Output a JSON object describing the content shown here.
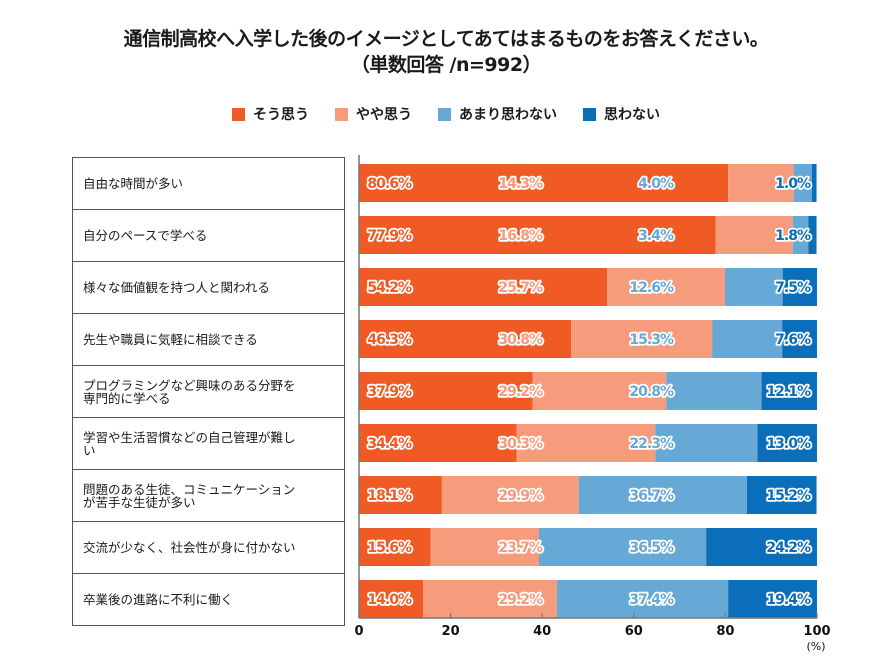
{
  "chart_data": {
    "type": "bar",
    "orientation": "horizontal",
    "stacked": true,
    "title": "通信制高校へ入学した後のイメージとしてあてはまるものをお答えください。",
    "subtitle": "（単数回答 /n=992）",
    "xlabel": "",
    "unit_label": "(%)",
    "xlim": [
      0,
      100
    ],
    "xticks": [
      "0",
      "20",
      "40",
      "60",
      "80",
      "100"
    ],
    "legend_position": "top",
    "categories": [
      "自由な時間が多い",
      "自分のペースで学べる",
      "様々な価値観を持つ人と関われる",
      "先生や職員に気軽に相談できる",
      "プログラミングなど興味のある分野を専門的に学べる",
      "学習や生活習慣などの自己管理が難しい",
      "問題のある生徒、コミュニケーションが苦手な生徒が多い",
      "交流が少なく、社会性が身に付かない",
      "卒業後の進路に不利に働く"
    ],
    "category_lines": [
      [
        "自由な時間が多い"
      ],
      [
        "自分のペースで学べる"
      ],
      [
        "様々な価値観を持つ人と関われる"
      ],
      [
        "先生や職員に気軽に相談できる"
      ],
      [
        "プログラミングなど興味のある分野を",
        "専門的に学べる"
      ],
      [
        "学習や生活習慣などの自己管理が難し",
        "い"
      ],
      [
        "問題のある生徒、コミュニケーション",
        "が苦手な生徒が多い"
      ],
      [
        "交流が少なく、社会性が身に付かない"
      ],
      [
        "卒業後の進路に不利に働く"
      ]
    ],
    "series": [
      {
        "name": "そう思う",
        "color": "#F05A24",
        "values": [
          80.6,
          77.9,
          54.2,
          46.3,
          37.9,
          34.4,
          18.1,
          15.6,
          14.0
        ]
      },
      {
        "name": "やや思う",
        "color": "#F69B7C",
        "values": [
          14.3,
          16.8,
          25.7,
          30.8,
          29.2,
          30.3,
          29.9,
          23.7,
          29.2
        ]
      },
      {
        "name": "あまり思わない",
        "color": "#66A9D7",
        "values": [
          4.0,
          3.4,
          12.6,
          15.3,
          20.8,
          22.3,
          36.7,
          36.5,
          37.4
        ]
      },
      {
        "name": "思わない",
        "color": "#0A6EBB",
        "values": [
          1.0,
          1.8,
          7.5,
          7.6,
          12.1,
          13.0,
          15.2,
          24.2,
          19.4
        ]
      }
    ],
    "value_suffix": "%"
  }
}
